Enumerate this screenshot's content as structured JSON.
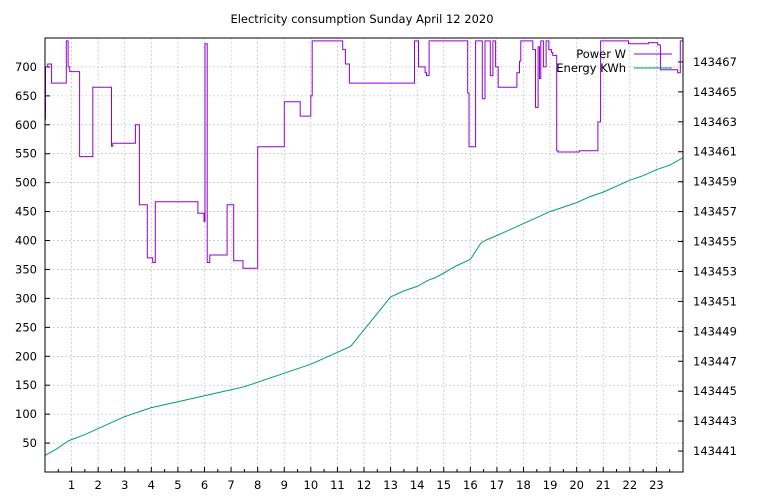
{
  "chart_data": {
    "type": "line",
    "title": "Electricity consumption Sunday April 12 2020",
    "xlim": [
      0,
      24
    ],
    "x_ticks": [
      1,
      2,
      3,
      4,
      5,
      6,
      7,
      8,
      9,
      10,
      11,
      12,
      13,
      14,
      15,
      16,
      17,
      18,
      19,
      20,
      21,
      22,
      23
    ],
    "y_left": {
      "lim": [
        0,
        750
      ],
      "ticks": [
        50,
        100,
        150,
        200,
        250,
        300,
        350,
        400,
        450,
        500,
        550,
        600,
        650,
        700
      ]
    },
    "y_right": {
      "lim": [
        143439.6,
        143468.6
      ],
      "ticks": [
        143441,
        143443,
        143445,
        143447,
        143449,
        143451,
        143453,
        143455,
        143457,
        143459,
        143461,
        143463,
        143465,
        143467
      ]
    },
    "grid": true,
    "legend_position": "top-right",
    "series": [
      {
        "name": "Power W",
        "axis": "left",
        "color": "#9400d3",
        "step": true,
        "x": [
          0,
          0.02,
          0.1,
          0.25,
          0.8,
          0.87,
          0.93,
          1.0,
          1.3,
          1.8,
          2.45,
          2.5,
          2.55,
          3.4,
          3.55,
          3.85,
          4.05,
          4.15,
          4.65,
          5.75,
          5.95,
          5.98,
          6.02,
          6.1,
          6.2,
          6.85,
          7.0,
          7.1,
          7.45,
          8.0,
          9.0,
          9.6,
          10.0,
          10.05,
          10.3,
          10.8,
          11.05,
          11.2,
          11.3,
          11.35,
          11.45,
          13.9,
          14.0,
          14.05,
          14.3,
          14.35,
          14.45,
          15.9,
          15.95,
          16.2,
          16.45,
          16.55,
          16.75,
          16.85,
          16.95,
          17.05,
          17.5,
          17.75,
          17.85,
          17.9,
          18.35,
          18.45,
          18.55,
          18.6,
          18.65,
          18.75,
          18.85,
          18.95,
          19.05,
          19.1,
          19.25,
          19.3,
          20.1,
          20.75,
          20.8,
          20.9,
          21.5,
          21.95,
          22.7,
          23.05,
          23.15,
          23.8,
          23.9
        ],
        "y": [
          610,
          700,
          705,
          672,
          745,
          700,
          692,
          692,
          545,
          665,
          665,
          563,
          568,
          600,
          462,
          370,
          362,
          467,
          467,
          447,
          447,
          433,
          740,
          362,
          375,
          462,
          462,
          365,
          352,
          562,
          640,
          615,
          650,
          745,
          745,
          745,
          745,
          730,
          705,
          705,
          672,
          745,
          745,
          700,
          690,
          685,
          745,
          655,
          562,
          745,
          645,
          745,
          685,
          745,
          700,
          665,
          665,
          690,
          710,
          745,
          730,
          630,
          735,
          680,
          745,
          700,
          745,
          730,
          725,
          720,
          555,
          553,
          555,
          555,
          605,
          745,
          745,
          740,
          742,
          738,
          695,
          690,
          745
        ]
      },
      {
        "name": "Energy KWh",
        "axis": "right",
        "color": "#009e73",
        "step": false,
        "x": [
          0,
          0.4,
          0.9,
          1.5,
          2.0,
          2.5,
          3.0,
          3.5,
          4.0,
          5.0,
          6.0,
          7.0,
          7.5,
          8.0,
          9.0,
          10.0,
          10.5,
          11.0,
          11.5,
          12.0,
          12.5,
          13.0,
          13.5,
          14.0,
          14.4,
          14.7,
          15.0,
          15.5,
          16.0,
          16.4,
          16.6,
          17.0,
          17.5,
          18.0,
          18.5,
          19.0,
          19.5,
          20.0,
          20.5,
          21.0,
          21.5,
          22.0,
          22.5,
          23.0,
          23.5,
          24.0
        ],
        "y": [
          143440.7,
          143441.1,
          143441.7,
          143442.1,
          143442.5,
          143442.9,
          143443.3,
          143443.6,
          143443.9,
          143444.3,
          143444.7,
          143445.1,
          143445.3,
          143445.6,
          143446.2,
          143446.8,
          143447.2,
          143447.6,
          143448.0,
          143449.1,
          143450.2,
          143451.3,
          143451.7,
          143452.0,
          143452.4,
          143452.6,
          143452.9,
          143453.4,
          143453.8,
          143454.9,
          143455.1,
          143455.4,
          143455.8,
          143456.2,
          143456.6,
          143457.0,
          143457.3,
          143457.6,
          143458.0,
          143458.3,
          143458.7,
          143459.1,
          143459.4,
          143459.8,
          143460.1,
          143460.6
        ]
      }
    ]
  }
}
